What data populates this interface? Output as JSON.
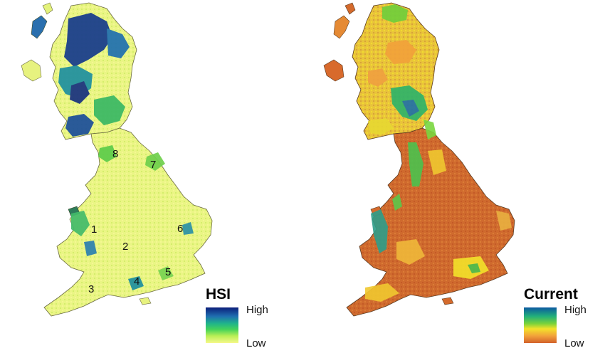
{
  "maps": {
    "hsi": {
      "legend_title": "HSI",
      "legend_high": "High",
      "legend_low": "Low",
      "ramp_colors": [
        "#0b1f7a",
        "#1f6fb0",
        "#1fb48a",
        "#45d35a",
        "#b8ef55",
        "#f6f88a"
      ],
      "land_color": "#eef58a",
      "regions": [
        {
          "label": "1"
        },
        {
          "label": "2"
        },
        {
          "label": "3"
        },
        {
          "label": "4"
        },
        {
          "label": "5"
        },
        {
          "label": "6"
        },
        {
          "label": "7"
        },
        {
          "label": "8"
        }
      ]
    },
    "current": {
      "legend_title": "Current",
      "legend_high": "High",
      "legend_low": "Low",
      "ramp_colors": [
        "#0b5aa0",
        "#22b07a",
        "#78d23c",
        "#f3e22a",
        "#f2a13a",
        "#d2622b"
      ],
      "land_color": "#d46a2c"
    }
  }
}
